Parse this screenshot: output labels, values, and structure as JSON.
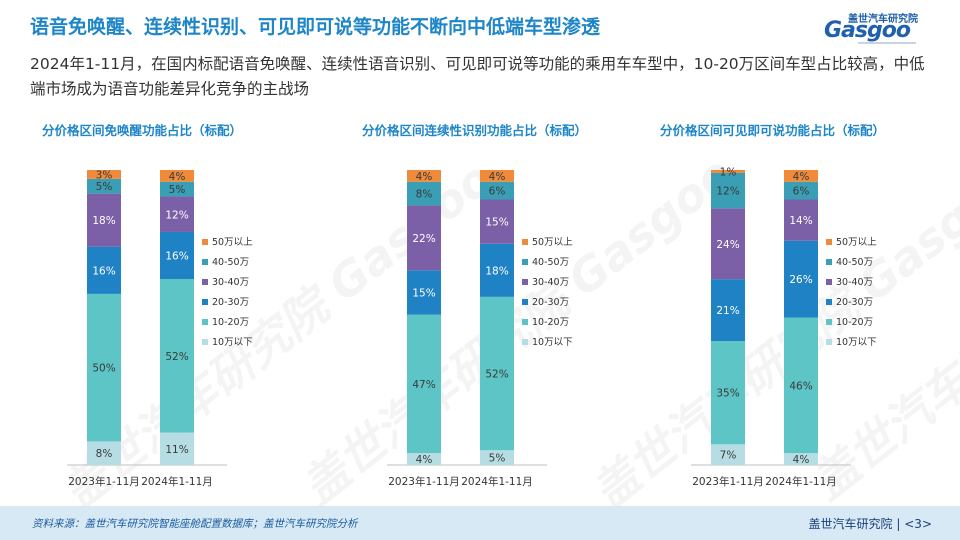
{
  "title": "语音免唤醒、连续性识别、可见即可说等功能不断向中低端车型渗透",
  "subtitle": "2024年1-11月，在国内标配语音免唤醒、连续性语音识别、可见即可说等功能的乘用车车型中，10-20万区间车型占比较高，中低端市场成为语音功能差异化竞争的主战场",
  "logo": {
    "brand": "盖世汽车研究院",
    "text": "Gasgoo"
  },
  "watermark": "盖世汽车研究院 Gasgoo",
  "colors": {
    "10万以下": "#b7dde4",
    "10-20万": "#5dc5c6",
    "20-30万": "#1f82c4",
    "30-40万": "#7b60a8",
    "40-50万": "#3a9fb5",
    "50万以上": "#ee8a3a"
  },
  "chart_data": [
    {
      "type": "bar",
      "stacked": true,
      "title": "分价格区间免唤醒功能占比（标配）",
      "categories": [
        "2023年1-11月",
        "2024年1-11月"
      ],
      "series": [
        {
          "name": "10万以下",
          "values": [
            8,
            11
          ]
        },
        {
          "name": "10-20万",
          "values": [
            50,
            52
          ]
        },
        {
          "name": "20-30万",
          "values": [
            16,
            16
          ]
        },
        {
          "name": "30-40万",
          "values": [
            18,
            12
          ]
        },
        {
          "name": "40-50万",
          "values": [
            5,
            5
          ]
        },
        {
          "name": "50万以上",
          "values": [
            3,
            4
          ]
        }
      ],
      "legend": "right",
      "ylim": [
        0,
        100
      ]
    },
    {
      "type": "bar",
      "stacked": true,
      "title": "分价格区间连续性识别功能占比（标配）",
      "categories": [
        "2023年1-11月",
        "2024年1-11月"
      ],
      "series": [
        {
          "name": "10万以下",
          "values": [
            4,
            5
          ]
        },
        {
          "name": "10-20万",
          "values": [
            47,
            52
          ]
        },
        {
          "name": "20-30万",
          "values": [
            15,
            18
          ]
        },
        {
          "name": "30-40万",
          "values": [
            22,
            15
          ]
        },
        {
          "name": "40-50万",
          "values": [
            8,
            6
          ]
        },
        {
          "name": "50万以上",
          "values": [
            4,
            4
          ]
        }
      ],
      "legend": "right",
      "ylim": [
        0,
        100
      ]
    },
    {
      "type": "bar",
      "stacked": true,
      "title": "分价格区间可见即可说功能占比（标配）",
      "categories": [
        "2023年1-11月",
        "2024年1-11月"
      ],
      "series": [
        {
          "name": "10万以下",
          "values": [
            7,
            4
          ]
        },
        {
          "name": "10-20万",
          "values": [
            35,
            46
          ]
        },
        {
          "name": "20-30万",
          "values": [
            21,
            26
          ]
        },
        {
          "name": "30-40万",
          "values": [
            24,
            14
          ]
        },
        {
          "name": "40-50万",
          "values": [
            12,
            6
          ]
        },
        {
          "name": "50万以上",
          "values": [
            1,
            4
          ]
        }
      ],
      "legend": "right",
      "ylim": [
        0,
        100
      ]
    }
  ],
  "footer": {
    "source": "资料来源：盖世汽车研究院智能座舱配置数据库；盖世汽车研究院分析",
    "org": "盖世汽车研究院",
    "page": "<3>"
  }
}
